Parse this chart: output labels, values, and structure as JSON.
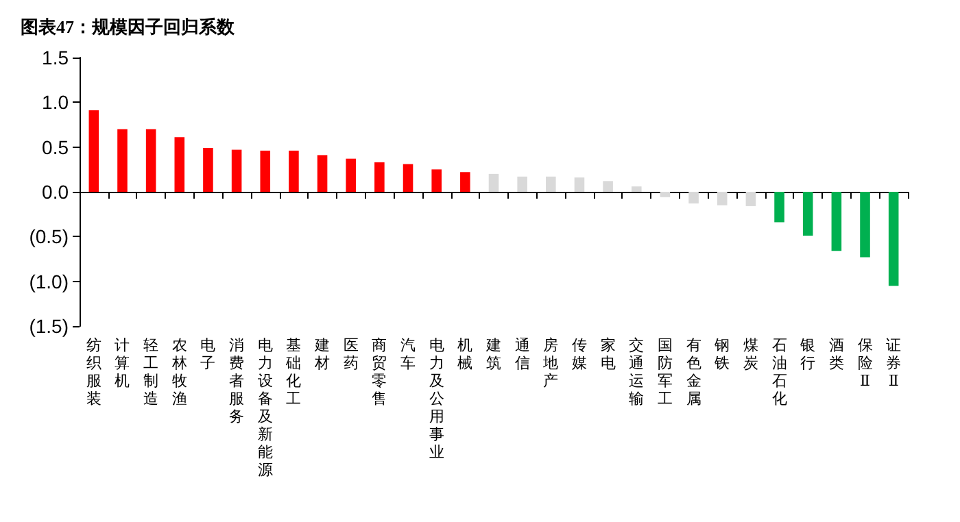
{
  "chart_data": {
    "type": "bar",
    "title": "图表47：规模因子回归系数",
    "categories": [
      "纺织服装",
      "计算机",
      "轻工制造",
      "农林牧渔",
      "电子",
      "消费者服务",
      "电力设备及新能源",
      "基础化工",
      "建材",
      "医药",
      "商贸零售",
      "汽车",
      "电力及公用事业",
      "机械",
      "建筑",
      "通信",
      "房地产",
      "传媒",
      "家电",
      "交通运输",
      "国防军工",
      "有色金属",
      "钢铁",
      "煤炭",
      "石油石化",
      "银行",
      "酒类",
      "保险Ⅱ",
      "证券Ⅱ"
    ],
    "values": [
      0.91,
      0.7,
      0.7,
      0.61,
      0.49,
      0.47,
      0.46,
      0.46,
      0.41,
      0.37,
      0.33,
      0.31,
      0.25,
      0.22,
      0.2,
      0.17,
      0.17,
      0.16,
      0.12,
      0.06,
      -0.06,
      -0.13,
      -0.15,
      -0.16,
      -0.34,
      -0.49,
      -0.66,
      -0.73,
      -1.05
    ],
    "colors": [
      "#ff0000",
      "#ff0000",
      "#ff0000",
      "#ff0000",
      "#ff0000",
      "#ff0000",
      "#ff0000",
      "#ff0000",
      "#ff0000",
      "#ff0000",
      "#ff0000",
      "#ff0000",
      "#ff0000",
      "#ff0000",
      "#d9d9d9",
      "#d9d9d9",
      "#d9d9d9",
      "#d9d9d9",
      "#d9d9d9",
      "#d9d9d9",
      "#d9d9d9",
      "#d9d9d9",
      "#d9d9d9",
      "#d9d9d9",
      "#00b050",
      "#00b050",
      "#00b050",
      "#00b050",
      "#00b050"
    ],
    "ylim": [
      -1.5,
      1.5
    ],
    "yticks": [
      {
        "value": -1.5,
        "label": "(1.5)"
      },
      {
        "value": -1.0,
        "label": "(1.0)"
      },
      {
        "value": -0.5,
        "label": "(0.5)"
      },
      {
        "value": 0,
        "label": "0.0"
      },
      {
        "value": 0.5,
        "label": "0.5"
      },
      {
        "value": 1.0,
        "label": "1.0"
      },
      {
        "value": 1.5,
        "label": "1.5"
      }
    ]
  }
}
